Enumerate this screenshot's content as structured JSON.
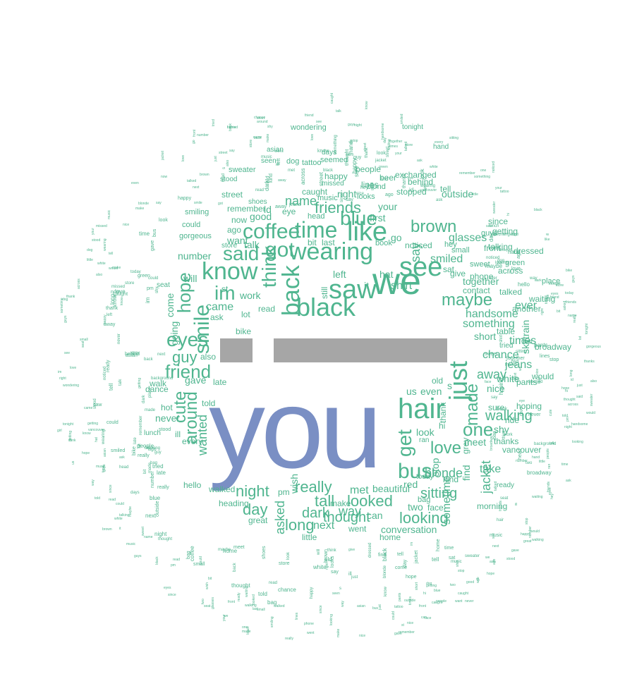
{
  "cloud": {
    "colors": {
      "word": "#4fb58f",
      "center": "#7a8fc4",
      "bars": "#a6a6a6"
    },
    "center_word": "you",
    "words": {
      "we": "we",
      "see": "see",
      "like": "like",
      "saw": "saw",
      "black": "black",
      "back": "back",
      "wearing": "wearing",
      "time": "time",
      "got": "got",
      "know": "know",
      "im": "im",
      "said": "said",
      "coffee": "coffee",
      "blue": "blue",
      "friends": "friends",
      "think": "think",
      "smile": "smile",
      "eyes": "eyes",
      "hope": "hope",
      "friend": "friend",
      "cute": "cute",
      "around": "around",
      "guy": "guy",
      "hair": "hair",
      "just": "just",
      "maybe": "maybe",
      "brown": "brown",
      "bus": "bus",
      "get": "get",
      "one": "one",
      "love": "love",
      "made": "made",
      "girl": "girl",
      "looking": "looking",
      "looked": "looked",
      "long": "long",
      "really": "really",
      "night": "night",
      "day": "day",
      "dark": "dark",
      "tall": "tall",
      "asked": "asked",
      "walking": "walking",
      "sitting": "sitting",
      "wanted": "wanted",
      "say": "say",
      "something": "something",
      "shirt": "shirt",
      "name": "name",
      "left": "left",
      "talk": "talk",
      "also": "also",
      "came": "came",
      "work": "work",
      "thought": "thought",
      "next": "next",
      "way": "way",
      "met": "met",
      "glasses": "glasses",
      "jeans": "jeans",
      "handsome": "handsome",
      "ever": "ever",
      "away": "away",
      "smiled": "smiled",
      "blonde": "blonde",
      "sometime": "sometime",
      "take": "take",
      "times": "times",
      "together": "together",
      "chance": "chance",
      "jacket": "jacket",
      "short": "short",
      "find": "find",
      "stop": "stop",
      "look": "look",
      "red": "red",
      "beautiful": "beautiful",
      "conversation": "conversation",
      "never": "never",
      "gave": "gave",
      "walked": "walked",
      "good": "good",
      "want": "want",
      "hat": "hat",
      "nice": "nice",
      "wish": "wish",
      "even": "even",
      "us": "us",
      "number": "number",
      "come": "come",
      "going": "going",
      "two": "two",
      "face": "face",
      "can": "can",
      "first": "first",
      "your": "your",
      "caught": "caught",
      "right": "right",
      "remember": "remember",
      "now": "now",
      "ago": "ago",
      "read": "read",
      "will": "will",
      "still": "still",
      "thank": "thank",
      "contact": "contact",
      "talked": "talked",
      "front": "front",
      "sure": "sure",
      "sat": "sat",
      "white": "white",
      "grey": "grey",
      "home": "home",
      "heading": "heading",
      "great": "great",
      "little": "little",
      "table": "table",
      "hoping": "hoping",
      "shy": "shy",
      "ride": "ride",
      "kind": "kind",
      "meet": "meet",
      "thanks": "thanks",
      "vancouver": "vancouver",
      "skytrain": "skytrain",
      "broadway": "broadway",
      "phone": "phone",
      "give": "give",
      "since": "since",
      "getting": "getting",
      "talking": "talking",
      "across": "across",
      "dressed": "dressed",
      "waiting": "waiting",
      "another": "another",
      "outside": "outside",
      "behind": "behind",
      "stopped": "stopped",
      "people": "people",
      "hi": "hi",
      "morning": "morning",
      "hello": "hello",
      "every": "every",
      "hot": "hot",
      "dance": "dance",
      "walk": "walk",
      "go": "go",
      "it": "it",
      "lot": "lot",
      "pm": "pm",
      "make": "make",
      "went": "went",
      "street": "street",
      "happy": "happy",
      "exchanged": "exchanged",
      "bike": "bike",
      "lines": "lines",
      "beer": "beer",
      "place": "place",
      "noticed": "noticed",
      "st": "st",
      "s": "s",
      "old": "old",
      "told": "told",
      "late": "late",
      "ill": "ill",
      "ask": "ask",
      "tell": "tell",
      "blond": "blond",
      "sweater": "sweater",
      "small": "small",
      "tattoo": "tattoo",
      "would": "would",
      "dog": "dog",
      "last": "last",
      "bit": "bit",
      "eye": "eye",
      "id": "id",
      "bag": "bag",
      "book": "book",
      "wondering": "wondering",
      "music": "music",
      "head": "head",
      "looks": "looks",
      "hey": "hey",
      "could": "could",
      "smiling": "smiling",
      "pants": "pants",
      "green": "green",
      "sweet": "sweet",
      "ready": "ready",
      "lunch": "lunch",
      "today": "today",
      "guys": "guys",
      "tonight": "tonight",
      "seen": "seen",
      "ran": "ran",
      "tried": "tried",
      "missed": "missed",
      "days": "days",
      "shoes": "shoes",
      "store": "store",
      "hand": "hand",
      "asian": "asian",
      "gorgeous": "gorgeous",
      "seat": "seat",
      "stood": "stood",
      "seemed": "seemed",
      "background": "background"
    }
  }
}
